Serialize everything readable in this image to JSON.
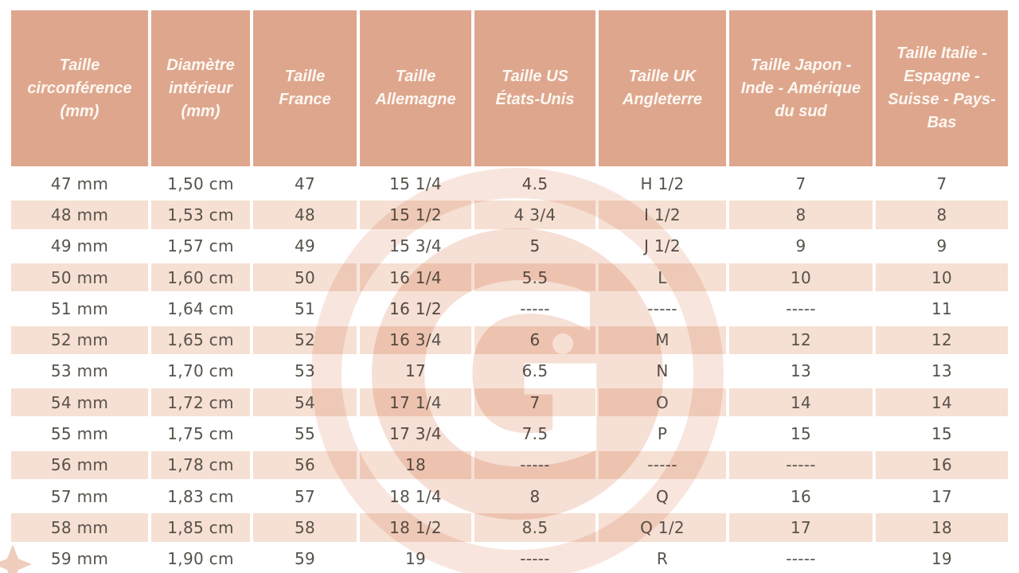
{
  "table": {
    "columns": [
      "Taille circonférence (mm)",
      "Diamètre intérieur (mm)",
      "Taille France",
      "Taille Allemagne",
      "Taille US États-Unis",
      "Taille UK Angleterre",
      "Taille Japon - Inde - Amérique du sud",
      "Taille Italie - Espagne - Suisse - Pays-Bas"
    ],
    "rows": [
      [
        "47 mm",
        "1,50 cm",
        "47",
        "15 1/4",
        "4.5",
        "H 1/2",
        "7",
        "7"
      ],
      [
        "48 mm",
        "1,53 cm",
        "48",
        "15 1/2",
        "4 3/4",
        "I 1/2",
        "8",
        "8"
      ],
      [
        "49 mm",
        "1,57 cm",
        "49",
        "15 3/4",
        "5",
        "J 1/2",
        "9",
        "9"
      ],
      [
        "50 mm",
        "1,60 cm",
        "50",
        "16 1/4",
        "5.5",
        "L",
        "10",
        "10"
      ],
      [
        "51 mm",
        "1,64 cm",
        "51",
        "16 1/2",
        "-----",
        "-----",
        "-----",
        "11"
      ],
      [
        "52 mm",
        "1,65 cm",
        "52",
        "16 3/4",
        "6",
        "M",
        "12",
        "12"
      ],
      [
        "53 mm",
        "1,70 cm",
        "53",
        "17",
        "6.5",
        "N",
        "13",
        "13"
      ],
      [
        "54 mm",
        "1,72 cm",
        "54",
        "17 1/4",
        "7",
        "O",
        "14",
        "14"
      ],
      [
        "55 mm",
        "1,75 cm",
        "55",
        "17 3/4",
        "7.5",
        "P",
        "15",
        "15"
      ],
      [
        "56 mm",
        "1,78 cm",
        "56",
        "18",
        "-----",
        "-----",
        "-----",
        "16"
      ],
      [
        "57 mm",
        "1,83 cm",
        "57",
        "18 1/4",
        "8",
        "Q",
        "16",
        "17"
      ],
      [
        "58 mm",
        "1,85 cm",
        "58",
        "18 1/2",
        "8.5",
        "Q 1/2",
        "17",
        "18"
      ],
      [
        "59 mm",
        "1,90 cm",
        "59",
        "19",
        "-----",
        "R",
        "-----",
        "19"
      ]
    ]
  },
  "watermark": {
    "letter": "G"
  },
  "colors": {
    "header_bg": "#dea78d",
    "header_text": "#fdf7f2",
    "row_bg": "#ffffff",
    "row_alt_bg": "#f6dfd3",
    "cell_text": "#57524b",
    "watermark_disc": "#f6dfd5",
    "watermark_ring": "#f8e6de",
    "watermark_star": "#eecdbd"
  }
}
